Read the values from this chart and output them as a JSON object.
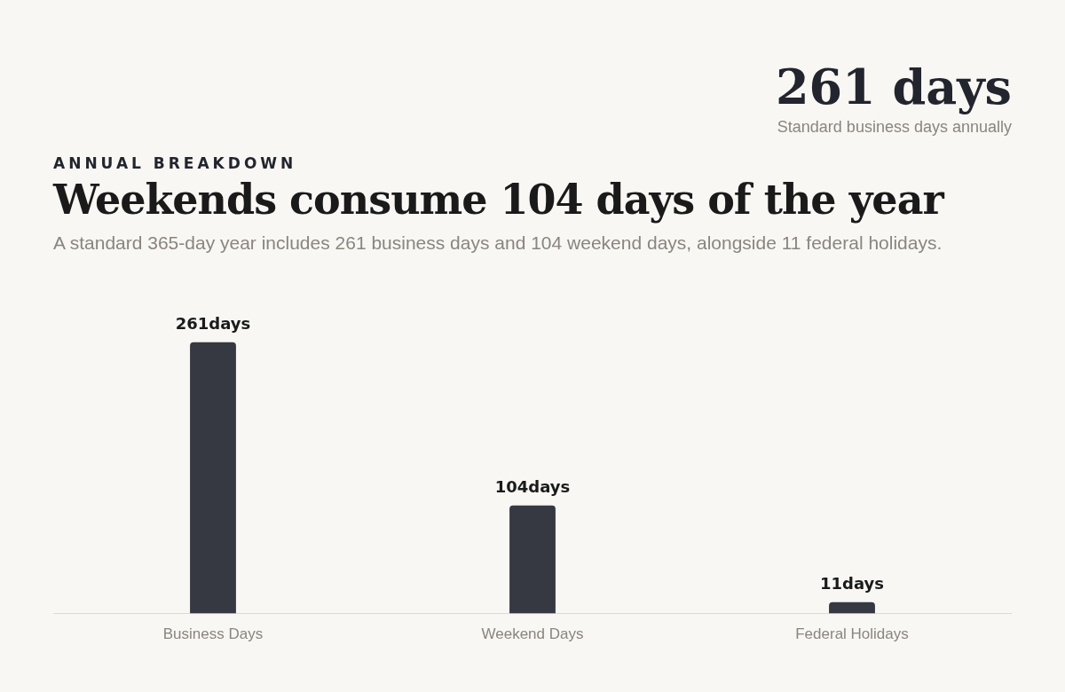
{
  "chart_data": {
    "type": "bar",
    "title": "Weekends consume 104 days of the year",
    "subtitle": "A standard 365-day year includes 261 business days and 104 weekend days, alongside 11 federal holidays.",
    "annotations": [
      "261 days",
      "Standard business days annually",
      "ANNUAL BREAKDOWN"
    ],
    "categories": [
      "Business Days",
      "Weekend Days",
      "Federal Holidays"
    ],
    "values": [
      261,
      104,
      11
    ],
    "value_labels": [
      "261days",
      "104days",
      "11days"
    ],
    "color": "#363842",
    "grid": false,
    "legend": false
  }
}
